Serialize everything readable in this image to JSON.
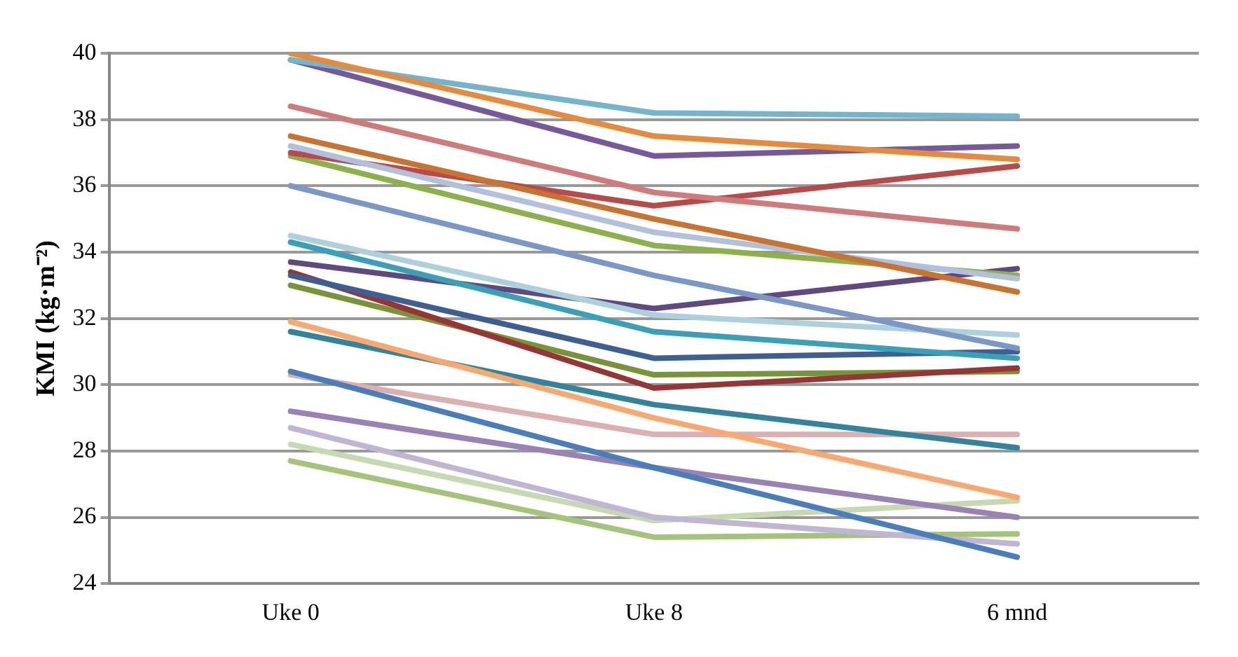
{
  "chart_data": {
    "type": "line",
    "categories": [
      "Uke 0",
      "Uke 8",
      "6 mnd"
    ],
    "ylabel": "KMI (kg·m⁻²)",
    "ylim": [
      24,
      40
    ],
    "yticks": [
      24,
      26,
      28,
      30,
      32,
      34,
      36,
      38,
      40
    ],
    "grid": "y",
    "legend": false,
    "marker": "none",
    "line_style": "solid",
    "series": [
      {
        "color": "#e68a3c",
        "values": [
          40.0,
          37.5,
          36.8
        ]
      },
      {
        "color": "#73b5cc",
        "values": [
          39.8,
          38.2,
          38.1
        ]
      },
      {
        "color": "#76599a",
        "values": [
          39.8,
          36.9,
          37.2
        ]
      },
      {
        "color": "#d07b7b",
        "values": [
          38.4,
          35.8,
          34.7
        ]
      },
      {
        "color": "#c8732f",
        "values": [
          37.5,
          35.0,
          32.8
        ]
      },
      {
        "color": "#b0c0dd",
        "values": [
          37.2,
          34.6,
          33.2
        ]
      },
      {
        "color": "#b84a4a",
        "values": [
          37.0,
          35.4,
          36.6
        ]
      },
      {
        "color": "#8db04a",
        "values": [
          36.9,
          34.2,
          33.3
        ]
      },
      {
        "color": "#7b97c8",
        "values": [
          36.0,
          33.3,
          31.1
        ]
      },
      {
        "color": "#acd0dc",
        "values": [
          34.5,
          32.1,
          31.5
        ]
      },
      {
        "color": "#3aa0b8",
        "values": [
          34.3,
          31.6,
          30.8
        ]
      },
      {
        "color": "#5e4a80",
        "values": [
          33.7,
          32.3,
          33.5
        ]
      },
      {
        "color": "#3d5f94",
        "values": [
          33.3,
          30.8,
          31.0
        ]
      },
      {
        "color": "#963535",
        "values": [
          33.4,
          29.9,
          30.5
        ]
      },
      {
        "color": "#779438",
        "values": [
          33.0,
          30.3,
          30.4
        ]
      },
      {
        "color": "#f9a870",
        "values": [
          31.9,
          29.0,
          26.6
        ]
      },
      {
        "color": "#31849b",
        "values": [
          31.6,
          29.4,
          28.1
        ]
      },
      {
        "color": "#4a7ebb",
        "values": [
          30.4,
          27.5,
          24.8
        ]
      },
      {
        "color": "#dcb0b0",
        "values": [
          30.3,
          28.5,
          28.5
        ]
      },
      {
        "color": "#9983b5",
        "values": [
          29.2,
          27.5,
          26.0
        ]
      },
      {
        "color": "#bfb5d4",
        "values": [
          28.7,
          26.0,
          25.2
        ]
      },
      {
        "color": "#c6d9b0",
        "values": [
          28.2,
          25.9,
          26.5
        ]
      },
      {
        "color": "#a5c47a",
        "values": [
          27.7,
          25.4,
          25.5
        ]
      }
    ]
  }
}
